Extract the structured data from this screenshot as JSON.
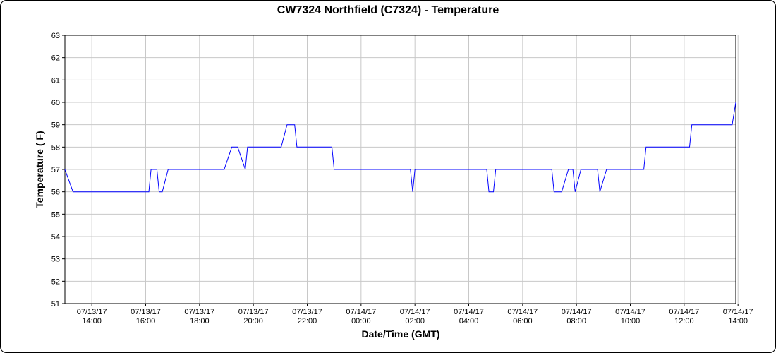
{
  "chart_data": {
    "type": "line",
    "title": "CW7324 Northfield (C7324) - Temperature",
    "xlabel": "Date/Time (GMT)",
    "ylabel": "Temperature ( F)",
    "ylim": [
      51,
      63
    ],
    "yticks": [
      51,
      52,
      53,
      54,
      55,
      56,
      57,
      58,
      59,
      60,
      61,
      62,
      63
    ],
    "xlim": [
      "07/13/17 13:00",
      "07/14/17 13:55"
    ],
    "xticks": [
      {
        "date": "07/13/17",
        "time": "14:00",
        "value": "07/13/17 14:00"
      },
      {
        "date": "07/13/17",
        "time": "16:00",
        "value": "07/13/17 16:00"
      },
      {
        "date": "07/13/17",
        "time": "18:00",
        "value": "07/13/17 18:00"
      },
      {
        "date": "07/13/17",
        "time": "20:00",
        "value": "07/13/17 20:00"
      },
      {
        "date": "07/13/17",
        "time": "22:00",
        "value": "07/13/17 22:00"
      },
      {
        "date": "07/14/17",
        "time": "00:00",
        "value": "07/14/17 00:00"
      },
      {
        "date": "07/14/17",
        "time": "02:00",
        "value": "07/14/17 02:00"
      },
      {
        "date": "07/14/17",
        "time": "04:00",
        "value": "07/14/17 04:00"
      },
      {
        "date": "07/14/17",
        "time": "06:00",
        "value": "07/14/17 06:00"
      },
      {
        "date": "07/14/17",
        "time": "08:00",
        "value": "07/14/17 08:00"
      },
      {
        "date": "07/14/17",
        "time": "10:00",
        "value": "07/14/17 10:00"
      },
      {
        "date": "07/14/17",
        "time": "12:00",
        "value": "07/14/17 12:00"
      },
      {
        "date": "07/14/17",
        "time": "14:00",
        "value": "07/14/17 14:00"
      }
    ],
    "grid": true,
    "series": [
      {
        "name": "",
        "color": "#0000ff",
        "points": [
          [
            "07/13/17 13:00",
            57
          ],
          [
            "07/13/17 13:18",
            56
          ],
          [
            "07/13/17 16:07",
            56
          ],
          [
            "07/13/17 16:12",
            57
          ],
          [
            "07/13/17 16:25",
            57
          ],
          [
            "07/13/17 16:30",
            56
          ],
          [
            "07/13/17 16:37",
            56
          ],
          [
            "07/13/17 16:50",
            57
          ],
          [
            "07/13/17 18:55",
            57
          ],
          [
            "07/13/17 19:12",
            58
          ],
          [
            "07/13/17 19:25",
            58
          ],
          [
            "07/13/17 19:42",
            57
          ],
          [
            "07/13/17 19:47",
            58
          ],
          [
            "07/13/17 21:02",
            58
          ],
          [
            "07/13/17 21:15",
            59
          ],
          [
            "07/13/17 21:32",
            59
          ],
          [
            "07/13/17 21:37",
            58
          ],
          [
            "07/13/17 22:55",
            58
          ],
          [
            "07/13/17 23:00",
            57
          ],
          [
            "07/14/17 01:50",
            57
          ],
          [
            "07/14/17 01:55",
            56
          ],
          [
            "07/14/17 02:00",
            57
          ],
          [
            "07/14/17 04:40",
            57
          ],
          [
            "07/14/17 04:45",
            56
          ],
          [
            "07/14/17 04:55",
            56
          ],
          [
            "07/14/17 05:00",
            57
          ],
          [
            "07/14/17 07:05",
            57
          ],
          [
            "07/14/17 07:10",
            56
          ],
          [
            "07/14/17 07:27",
            56
          ],
          [
            "07/14/17 07:42",
            57
          ],
          [
            "07/14/17 07:52",
            57
          ],
          [
            "07/14/17 07:57",
            56
          ],
          [
            "07/14/17 08:10",
            57
          ],
          [
            "07/14/17 08:47",
            57
          ],
          [
            "07/14/17 08:52",
            56
          ],
          [
            "07/14/17 09:07",
            57
          ],
          [
            "07/14/17 10:30",
            57
          ],
          [
            "07/14/17 10:35",
            58
          ],
          [
            "07/14/17 12:12",
            58
          ],
          [
            "07/14/17 12:17",
            59
          ],
          [
            "07/14/17 13:47",
            59
          ],
          [
            "07/14/17 13:55",
            60
          ]
        ]
      }
    ]
  }
}
